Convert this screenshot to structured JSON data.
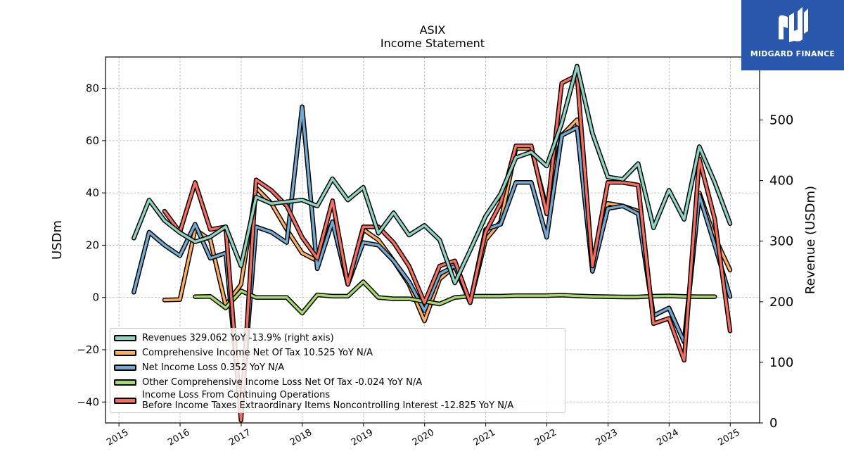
{
  "chart_data": {
    "type": "line",
    "title": "ASIX",
    "subtitle": "Income Statement",
    "ylabel": "USDm",
    "ylabel_right": "Revenue (USDm)",
    "x_ticks": [
      "2015",
      "2016",
      "2017",
      "2018",
      "2019",
      "2020",
      "2021",
      "2022",
      "2023",
      "2024",
      "2025"
    ],
    "y_ticks": [
      "−40",
      "−20",
      "0",
      "20",
      "40",
      "60",
      "80"
    ],
    "y_right_ticks": [
      "0",
      "100",
      "200",
      "300",
      "400",
      "500"
    ],
    "ylim": [
      -48,
      92
    ],
    "ylim_right": [
      0,
      604
    ],
    "xlim": [
      2014.78,
      2025.48
    ],
    "grid": true,
    "legend_position": "lower-left",
    "series": [
      {
        "name": "Comprehensive Income Net Of Tax",
        "label": "Comprehensive Income Net Of Tax  10.525 YoY N/A",
        "color": "#fdae61",
        "axis": "left",
        "x": [
          "2015-09-30",
          "2015-12-31",
          "2016-03-31",
          "2016-06-30",
          "2016-09-30",
          "2016-12-31",
          "2017-03-31",
          "2017-06-30",
          "2017-09-30",
          "2017-12-31",
          "2018-03-31",
          "2018-06-30",
          "2018-09-30",
          "2018-12-31",
          "2019-03-31",
          "2019-06-30",
          "2019-09-30",
          "2019-12-31",
          "2020-03-31",
          "2020-06-30",
          "2020-09-30",
          "2020-12-31",
          "2021-03-31",
          "2021-06-30",
          "2021-09-30",
          "2021-12-31",
          "2022-03-31",
          "2022-06-30",
          "2022-09-30",
          "2022-12-31",
          "2023-03-31",
          "2023-06-30",
          "2023-09-30",
          "2023-12-31",
          "2024-03-31",
          "2024-06-30",
          "2024-09-30",
          "2024-12-31"
        ],
        "y": [
          -1.0,
          -0.8,
          26,
          22,
          -3,
          5,
          42,
          36,
          26,
          17,
          14,
          29,
          5,
          26,
          22,
          14,
          5,
          -9,
          7,
          12,
          -2,
          22,
          29,
          57,
          57,
          34,
          62,
          68,
          12,
          36,
          35,
          33,
          -7,
          -4,
          -17,
          40,
          23,
          10.5
        ]
      },
      {
        "name": "Net Income Loss",
        "label": "Net Income Loss  0.352 YoY N/A",
        "color": "#74a9cf",
        "axis": "left",
        "x": [
          "2015-03-31",
          "2015-06-30",
          "2015-09-30",
          "2015-12-31",
          "2016-03-31",
          "2016-06-30",
          "2016-09-30",
          "2016-12-31",
          "2017-03-31",
          "2017-06-30",
          "2017-09-30",
          "2017-12-31",
          "2018-03-31",
          "2018-06-30",
          "2018-09-30",
          "2018-12-31",
          "2019-03-31",
          "2019-06-30",
          "2019-09-30",
          "2019-12-31",
          "2020-03-31",
          "2020-06-30",
          "2020-09-30",
          "2020-12-31",
          "2021-03-31",
          "2021-06-30",
          "2021-09-30",
          "2021-12-31",
          "2022-03-31",
          "2022-06-30",
          "2022-09-30",
          "2022-12-31",
          "2023-03-31",
          "2023-06-30",
          "2023-09-30",
          "2023-12-31",
          "2024-03-31",
          "2024-06-30",
          "2024-09-30",
          "2024-12-31"
        ],
        "y": [
          2,
          25,
          20,
          16,
          28,
          15,
          17,
          -45,
          27,
          25,
          21,
          73,
          11,
          29,
          5,
          21,
          20,
          14,
          6,
          -5,
          9,
          12,
          -2,
          26,
          28,
          44,
          44,
          23,
          62,
          65,
          10,
          34,
          35,
          32,
          -7,
          -4,
          -17,
          39,
          20,
          0.35
        ]
      },
      {
        "name": "Other Comprehensive Income Loss Net Of Tax",
        "label": "Other Comprehensive Income Loss Net Of Tax  -0.024 YoY N/A",
        "color": "#a6d96a",
        "axis": "left",
        "x": [
          "2016-03-31",
          "2016-06-30",
          "2016-09-30",
          "2016-12-31",
          "2017-03-31",
          "2017-06-30",
          "2017-09-30",
          "2017-12-31",
          "2018-03-31",
          "2018-06-30",
          "2018-09-30",
          "2018-12-31",
          "2019-03-31",
          "2019-06-30",
          "2019-09-30",
          "2019-12-31",
          "2020-03-31",
          "2020-06-30",
          "2020-09-30",
          "2020-12-31",
          "2021-03-31",
          "2021-06-30",
          "2021-09-30",
          "2021-12-31",
          "2022-03-31",
          "2022-06-30",
          "2022-09-30",
          "2022-12-31",
          "2023-03-31",
          "2023-06-30",
          "2023-09-30",
          "2023-12-31",
          "2024-03-31",
          "2024-06-30",
          "2024-09-30"
        ],
        "y": [
          0.3,
          0.4,
          -4,
          2.5,
          0,
          0,
          0,
          -6,
          1,
          0.5,
          0.5,
          6,
          0,
          -0.5,
          -0.5,
          -1.5,
          -2.5,
          0,
          0.5,
          0.5,
          0.5,
          0.7,
          0.7,
          0.7,
          0.9,
          0.6,
          0.4,
          0.3,
          0.2,
          0.2,
          0.5,
          0.6,
          0.4,
          0.3,
          0.3
        ]
      },
      {
        "name": "Income Loss From Continuing Operations Before Income Taxes Extraordinary Items Noncontrolling Interest",
        "label": "Income Loss From Continuing Operations\nBefore Income Taxes Extraordinary Items Noncontrolling Interest  -12.825 YoY N/A",
        "color": "#f46d5e",
        "axis": "left",
        "x": [
          "2015-09-30",
          "2015-12-31",
          "2016-03-31",
          "2016-06-30",
          "2016-09-30",
          "2016-12-31",
          "2017-03-31",
          "2017-06-30",
          "2017-09-30",
          "2017-12-31",
          "2018-03-31",
          "2018-06-30",
          "2018-09-30",
          "2018-12-31",
          "2019-03-31",
          "2019-06-30",
          "2019-09-30",
          "2019-12-31",
          "2020-03-31",
          "2020-06-30",
          "2020-09-30",
          "2020-12-31",
          "2021-03-31",
          "2021-06-30",
          "2021-09-30",
          "2021-12-31",
          "2022-03-31",
          "2022-06-30",
          "2022-09-30",
          "2022-12-31",
          "2023-03-31",
          "2023-06-30",
          "2023-09-30",
          "2023-12-31",
          "2024-03-31",
          "2024-06-30",
          "2024-09-30",
          "2024-12-31"
        ],
        "y": [
          33,
          25,
          44,
          26,
          27,
          -47,
          45,
          41,
          35,
          23,
          15,
          37,
          5,
          27,
          27,
          21,
          12,
          -2,
          12,
          14,
          -2,
          25,
          36,
          58,
          58,
          32,
          82,
          85,
          12,
          44,
          44,
          43,
          -10,
          -8,
          -24,
          53,
          30,
          -12.8
        ]
      },
      {
        "name": "Revenues",
        "label": "Revenues  329.062 YoY -13.9% (right axis)",
        "color": "#8fd3c3",
        "axis": "right",
        "x": [
          "2015-03-31",
          "2015-06-30",
          "2015-09-30",
          "2015-12-31",
          "2016-03-31",
          "2016-06-30",
          "2016-09-30",
          "2016-12-31",
          "2017-03-31",
          "2017-06-30",
          "2017-09-30",
          "2017-12-31",
          "2018-03-31",
          "2018-06-30",
          "2018-09-30",
          "2018-12-31",
          "2019-03-31",
          "2019-06-30",
          "2019-09-30",
          "2019-12-31",
          "2020-03-31",
          "2020-06-30",
          "2020-09-30",
          "2020-12-31",
          "2021-03-31",
          "2021-06-30",
          "2021-09-30",
          "2021-12-31",
          "2022-03-31",
          "2022-06-30",
          "2022-09-30",
          "2022-12-31",
          "2023-03-31",
          "2023-06-30",
          "2023-09-30",
          "2023-12-31",
          "2024-03-31",
          "2024-06-30",
          "2024-09-30",
          "2024-12-31"
        ],
        "y": [
          305,
          368,
          334,
          314,
          299,
          307,
          324,
          259,
          373,
          362,
          365,
          368,
          358,
          403,
          368,
          389,
          313,
          347,
          310,
          326,
          302,
          231,
          285,
          341,
          378,
          438,
          447,
          424,
          495,
          589,
          478,
          406,
          402,
          428,
          322,
          384,
          336,
          456,
          397,
          329
        ]
      }
    ]
  },
  "logo": {
    "text": "MIDGARD FINANCE"
  }
}
